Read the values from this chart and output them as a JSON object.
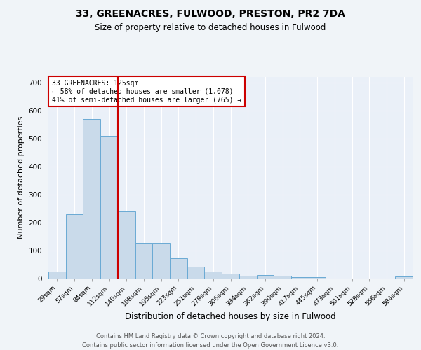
{
  "title_line1": "33, GREENACRES, FULWOOD, PRESTON, PR2 7DA",
  "title_line2": "Size of property relative to detached houses in Fulwood",
  "xlabel": "Distribution of detached houses by size in Fulwood",
  "ylabel": "Number of detached properties",
  "categories": [
    "29sqm",
    "57sqm",
    "84sqm",
    "112sqm",
    "140sqm",
    "168sqm",
    "195sqm",
    "223sqm",
    "251sqm",
    "279sqm",
    "306sqm",
    "334sqm",
    "362sqm",
    "390sqm",
    "417sqm",
    "445sqm",
    "473sqm",
    "501sqm",
    "528sqm",
    "556sqm",
    "584sqm"
  ],
  "values": [
    25,
    230,
    570,
    510,
    240,
    127,
    127,
    72,
    42,
    25,
    17,
    10,
    12,
    10,
    5,
    5,
    0,
    0,
    0,
    0,
    7
  ],
  "bar_color": "#c9daea",
  "bar_edgecolor": "#6aaad4",
  "red_line_x": 3.5,
  "annotation_line1": "33 GREENACRES: 125sqm",
  "annotation_line2": "← 58% of detached houses are smaller (1,078)",
  "annotation_line3": "41% of semi-detached houses are larger (765) →",
  "ylim": [
    0,
    720
  ],
  "yticks": [
    0,
    100,
    200,
    300,
    400,
    500,
    600,
    700
  ],
  "footer": "Contains HM Land Registry data © Crown copyright and database right 2024.\nContains public sector information licensed under the Open Government Licence v3.0.",
  "bg_color": "#f0f4f8",
  "plot_bg_color": "#eaf0f8"
}
